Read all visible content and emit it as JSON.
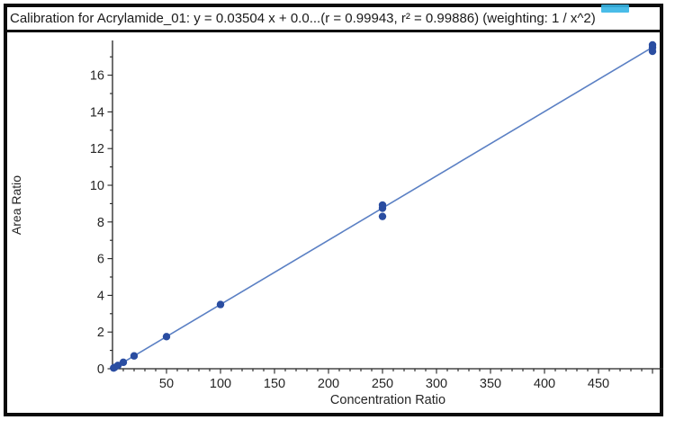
{
  "title": {
    "text": "Calibration for Acrylamide_01: y = 0.03504 x + 0.0...(r = 0.99943, r² = 0.99886)  (weighting: 1 / x^2)"
  },
  "ui": {
    "selection_highlight_color": "#35b5e5",
    "frame_border_color": "#0b0b0b"
  },
  "chart_data": {
    "type": "scatter",
    "title": "Calibration for Acrylamide_01",
    "xlabel": "Concentration Ratio",
    "ylabel": "Area Ratio",
    "xlim": [
      0,
      510
    ],
    "ylim": [
      0,
      17.9
    ],
    "grid": false,
    "legend": null,
    "x_major_ticks": [
      50,
      100,
      150,
      200,
      250,
      300,
      350,
      400,
      450
    ],
    "x_minor_step": 10,
    "x_minor_max": 500,
    "x_major_step": 50,
    "y_major_ticks": [
      0,
      2,
      4,
      6,
      8,
      10,
      12,
      14,
      16
    ],
    "y_minor_step": 1,
    "y_minor_max": 17,
    "points": [
      [
        1,
        0.04
      ],
      [
        2,
        0.07
      ],
      [
        5,
        0.18
      ],
      [
        10,
        0.35
      ],
      [
        20,
        0.7
      ],
      [
        50,
        1.75
      ],
      [
        100,
        3.5
      ],
      [
        250,
        8.3
      ],
      [
        250,
        8.75
      ],
      [
        250,
        8.92
      ],
      [
        500,
        17.3
      ],
      [
        500,
        17.5
      ],
      [
        500,
        17.65
      ]
    ],
    "fit": {
      "slope": 0.03504,
      "intercept": 0.0,
      "r": 0.99943,
      "r2": 0.99886,
      "weighting": "1 / x^2",
      "x_range": [
        0,
        500
      ]
    },
    "colors": {
      "point": "#2a4da1",
      "line": "#5b80c4",
      "axis": "#222222",
      "tick_text": "#262626"
    }
  }
}
